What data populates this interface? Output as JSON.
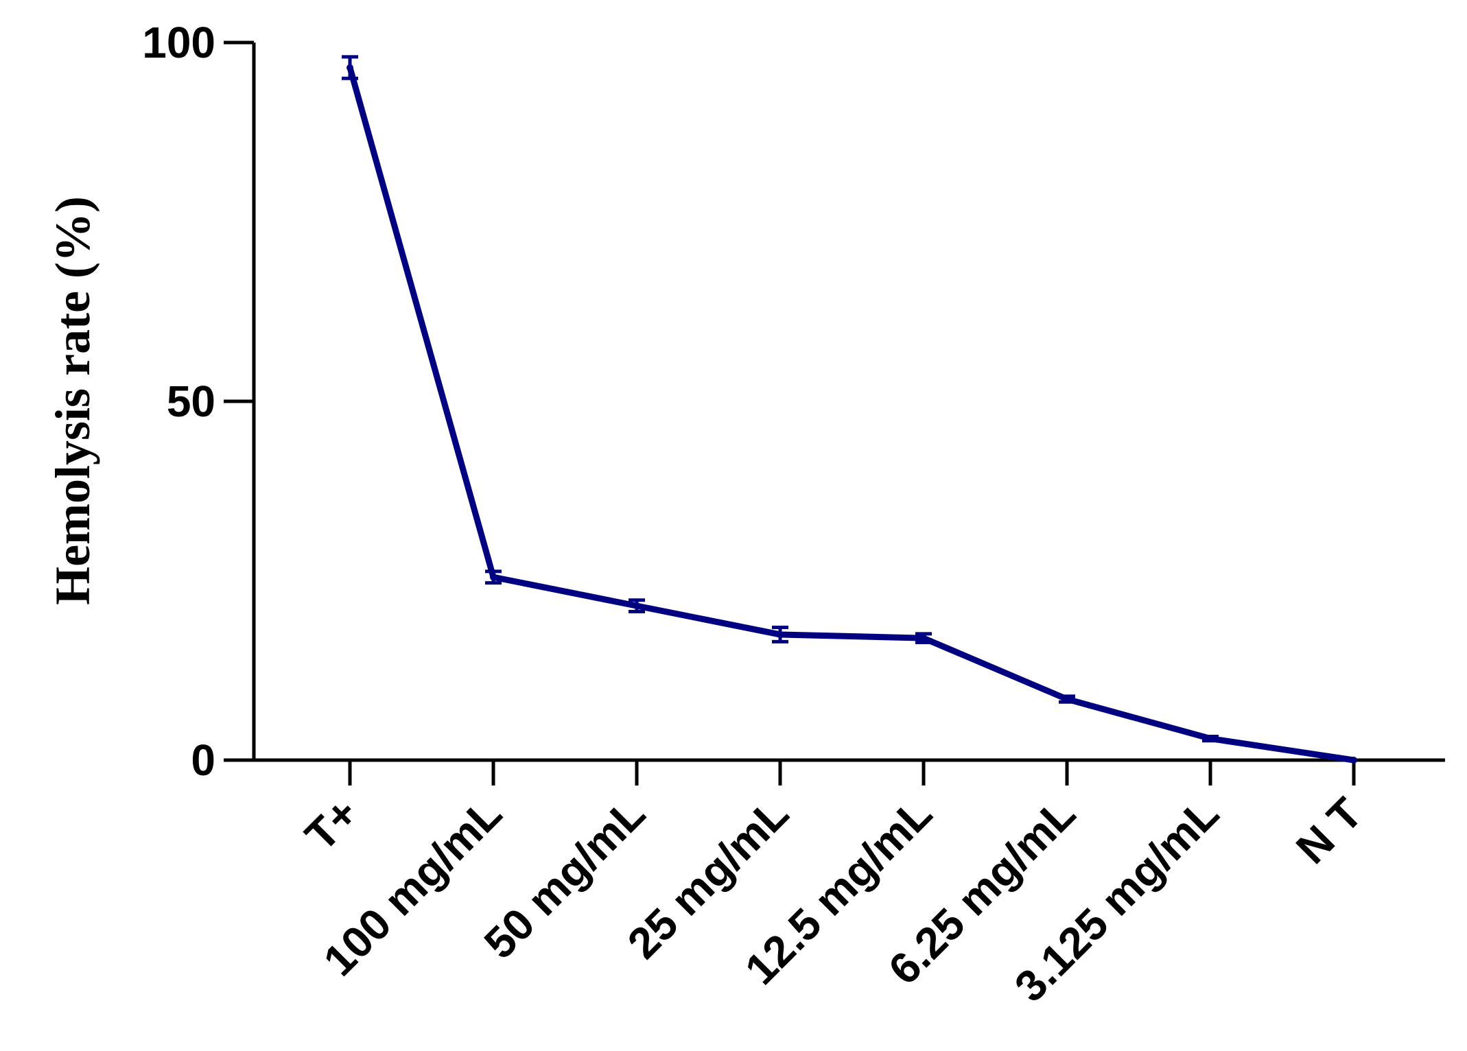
{
  "chart_data": {
    "type": "line",
    "title": "",
    "xlabel": "",
    "ylabel": "Hemolysis rate (%)",
    "categories": [
      "T+",
      "100 mg/mL",
      "50 mg/mL",
      "25 mg/mL",
      "12.5 mg/mL",
      "6.25 mg/mL",
      "3.125 mg/mL",
      "N T"
    ],
    "series": [
      {
        "values": [
          96.5,
          25.5,
          21.5,
          17.5,
          17.0,
          8.5,
          3.0,
          0.0
        ],
        "errors": [
          1.5,
          0.8,
          0.8,
          1.0,
          0.6,
          0.4,
          0.3,
          0.0
        ],
        "color": "#000080"
      }
    ],
    "ylim": [
      0,
      100
    ],
    "yticks": [
      0,
      50,
      100
    ],
    "grid": false,
    "legend": "none"
  }
}
